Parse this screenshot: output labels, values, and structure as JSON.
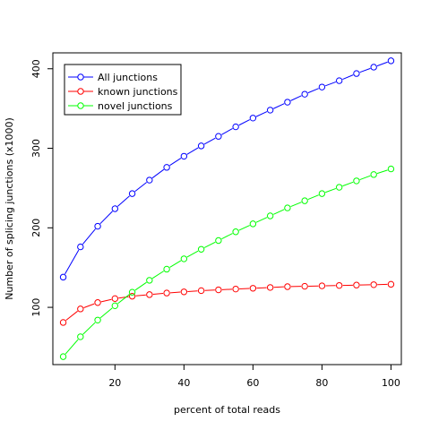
{
  "chart_data": {
    "type": "line",
    "xlabel": "percent of total reads",
    "ylabel": "Number of splicing junctions (x1000)",
    "xlim": [
      2,
      103
    ],
    "ylim": [
      28,
      420
    ],
    "x_ticks": [
      20,
      40,
      60,
      80,
      100
    ],
    "y_ticks": [
      100,
      200,
      300,
      400
    ],
    "grid": false,
    "legend_position": "top-left",
    "x": [
      5,
      10,
      15,
      20,
      25,
      30,
      35,
      40,
      45,
      50,
      55,
      60,
      65,
      70,
      75,
      80,
      85,
      90,
      95,
      100
    ],
    "series": [
      {
        "name": "All junctions",
        "color": "#0000ff",
        "marker": "open-circle",
        "values": [
          138,
          176,
          202,
          224,
          243,
          260,
          276,
          290,
          303,
          315,
          327,
          338,
          348,
          358,
          368,
          377,
          385,
          394,
          402,
          410
        ]
      },
      {
        "name": "known junctions",
        "color": "#ff0000",
        "marker": "open-circle",
        "values": [
          81,
          98,
          106,
          111,
          114,
          116,
          118,
          119.5,
          121,
          122,
          123,
          124,
          125,
          126,
          126.5,
          127,
          127.5,
          128,
          128.5,
          129
        ]
      },
      {
        "name": "novel junctions",
        "color": "#00ff00",
        "marker": "open-circle",
        "values": [
          38,
          63,
          84,
          102,
          119,
          134,
          148,
          161,
          173,
          184,
          195,
          205,
          215,
          225,
          234,
          243,
          251,
          259,
          267,
          274
        ]
      }
    ]
  }
}
